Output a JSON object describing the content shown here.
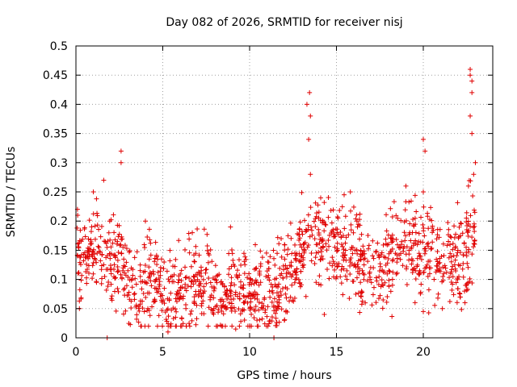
{
  "chart_data": {
    "type": "scatter",
    "title": "Day 082 of 2026, SRMTID for receiver nisj",
    "xlabel": "GPS time / hours",
    "ylabel": "SRMTID / TECUs",
    "xlim": [
      0,
      24
    ],
    "ylim": [
      0,
      0.5
    ],
    "xticks": [
      0,
      5,
      10,
      15,
      20
    ],
    "xtick_labels": [
      "0",
      "5",
      "10",
      "15",
      "20"
    ],
    "yticks": [
      0,
      0.05,
      0.1,
      0.15,
      0.2,
      0.25,
      0.3,
      0.35,
      0.4,
      0.45,
      0.5
    ],
    "ytick_labels": [
      "0",
      "0.05",
      "0.1",
      "0.15",
      "0.2",
      "0.25",
      "0.3",
      "0.35",
      "0.4",
      "0.45",
      "0.5"
    ],
    "grid": true,
    "marker": "+",
    "color": "#e00000",
    "series": [
      {
        "name": "SRMTID",
        "trend": [
          [
            0.0,
            0.12
          ],
          [
            0.5,
            0.15
          ],
          [
            1.0,
            0.16
          ],
          [
            1.5,
            0.14
          ],
          [
            2.0,
            0.12
          ],
          [
            2.5,
            0.15
          ],
          [
            3.0,
            0.08
          ],
          [
            3.5,
            0.07
          ],
          [
            4.0,
            0.09
          ],
          [
            4.5,
            0.1
          ],
          [
            5.0,
            0.08
          ],
          [
            5.5,
            0.06
          ],
          [
            6.0,
            0.07
          ],
          [
            6.5,
            0.08
          ],
          [
            7.0,
            0.09
          ],
          [
            7.5,
            0.1
          ],
          [
            8.0,
            0.08
          ],
          [
            8.5,
            0.07
          ],
          [
            9.0,
            0.09
          ],
          [
            9.5,
            0.08
          ],
          [
            10.0,
            0.07
          ],
          [
            10.5,
            0.08
          ],
          [
            11.0,
            0.07
          ],
          [
            11.5,
            0.08
          ],
          [
            12.0,
            0.1
          ],
          [
            12.5,
            0.12
          ],
          [
            13.0,
            0.15
          ],
          [
            13.5,
            0.17
          ],
          [
            14.0,
            0.16
          ],
          [
            14.5,
            0.17
          ],
          [
            15.0,
            0.16
          ],
          [
            15.5,
            0.15
          ],
          [
            16.0,
            0.14
          ],
          [
            16.5,
            0.13
          ],
          [
            17.0,
            0.12
          ],
          [
            17.5,
            0.13
          ],
          [
            18.0,
            0.13
          ],
          [
            18.5,
            0.15
          ],
          [
            19.0,
            0.17
          ],
          [
            19.5,
            0.15
          ],
          [
            20.0,
            0.14
          ],
          [
            20.5,
            0.14
          ],
          [
            21.0,
            0.12
          ],
          [
            21.5,
            0.12
          ],
          [
            22.0,
            0.13
          ],
          [
            22.5,
            0.16
          ],
          [
            23.0,
            0.2
          ]
        ],
        "spikes": [
          [
            0.1,
            0.21
          ],
          [
            1.0,
            0.25
          ],
          [
            1.6,
            0.27
          ],
          [
            2.6,
            0.32
          ],
          [
            2.6,
            0.3
          ],
          [
            4.0,
            0.2
          ],
          [
            6.7,
            0.18
          ],
          [
            8.9,
            0.19
          ],
          [
            13.3,
            0.4
          ],
          [
            13.45,
            0.42
          ],
          [
            13.5,
            0.38
          ],
          [
            13.4,
            0.34
          ],
          [
            13.5,
            0.28
          ],
          [
            15.8,
            0.25
          ],
          [
            19.0,
            0.26
          ],
          [
            20.0,
            0.34
          ],
          [
            20.1,
            0.32
          ],
          [
            20.0,
            0.25
          ],
          [
            22.7,
            0.46
          ],
          [
            22.7,
            0.45
          ],
          [
            22.8,
            0.44
          ],
          [
            22.8,
            0.42
          ],
          [
            22.7,
            0.38
          ],
          [
            22.8,
            0.35
          ],
          [
            23.0,
            0.3
          ],
          [
            22.9,
            0.28
          ],
          [
            22.6,
            0.26
          ]
        ],
        "lows": [
          [
            0.2,
            0.05
          ],
          [
            1.8,
            0.0
          ],
          [
            5.3,
            0.01
          ],
          [
            9.2,
            0.015
          ],
          [
            11.4,
            0.0
          ],
          [
            12.0,
            0.03
          ],
          [
            14.3,
            0.04
          ],
          [
            20.0,
            0.045
          ],
          [
            21.1,
            0.05
          ],
          [
            22.4,
            0.06
          ]
        ]
      }
    ]
  }
}
